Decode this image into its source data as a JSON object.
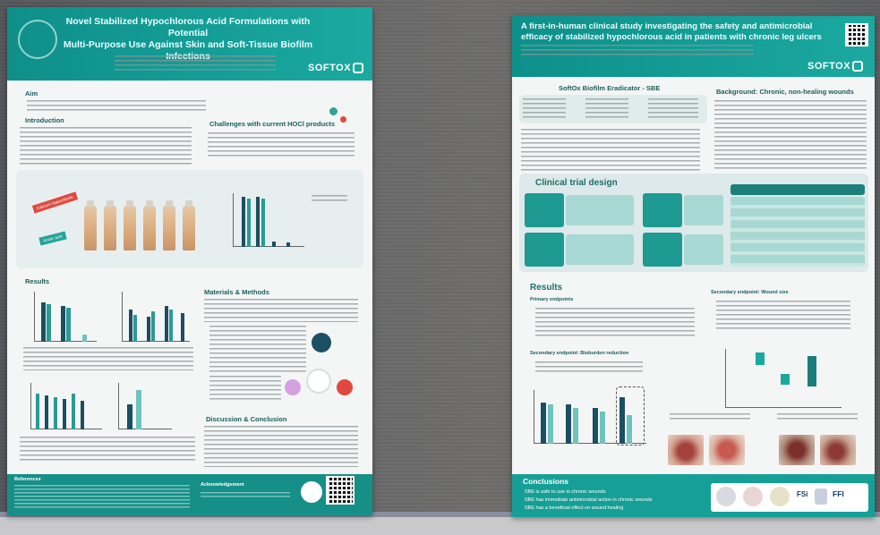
{
  "left_poster": {
    "title_line1": "Novel Stabilized Hypochlorous Acid Formulations with Potential",
    "title_line2": "Multi-Purpose Use Against Skin and Soft-Tissue Biofilm",
    "title_line3": "Infections",
    "logo": "SOFTOX",
    "sections": {
      "aim": "Aim",
      "introduction": "Introduction",
      "challenges": "Challenges with current HOCl products",
      "results": "Results",
      "materials": "Materials & Methods",
      "discussion": "Discussion & Conclusion",
      "acknowledgement": "Acknowledgement",
      "references": "References"
    },
    "tags": {
      "red": "Calcium Hypochlorite",
      "teal": "Acetic acid"
    }
  },
  "right_poster": {
    "title_line1": "A first-in-human clinical study investigating the safety and antimicrobial",
    "title_line2": "efficacy of stabilized hypochlorous acid in patients with chronic leg ulcers",
    "logo": "SOFTOX",
    "sections": {
      "sbe": "SoftOx Biofilm Eradicator - SBE",
      "background": "Background: Chronic, non-healing wounds",
      "trial_design": "Clinical trial design",
      "results": "Results",
      "primary": "Primary endpoints",
      "secondary_bio": "Secondary endpoint: Bioburden reduction",
      "secondary_wound": "Secondary endpoint: Wound size",
      "conclusions": "Conclusions"
    },
    "conclusions": [
      "SBE is safe to use in chronic wounds",
      "SBE has immediate antimicrobial action in chronic wounds",
      "SBE has a beneficial effect on wound healing"
    ],
    "footer_logos": {
      "fsi": "FSi",
      "ffi": "FFI"
    }
  },
  "colors": {
    "teal": "#1aa9a0",
    "dark_teal": "#0e8f8a",
    "wall": "#6b6b6c"
  }
}
